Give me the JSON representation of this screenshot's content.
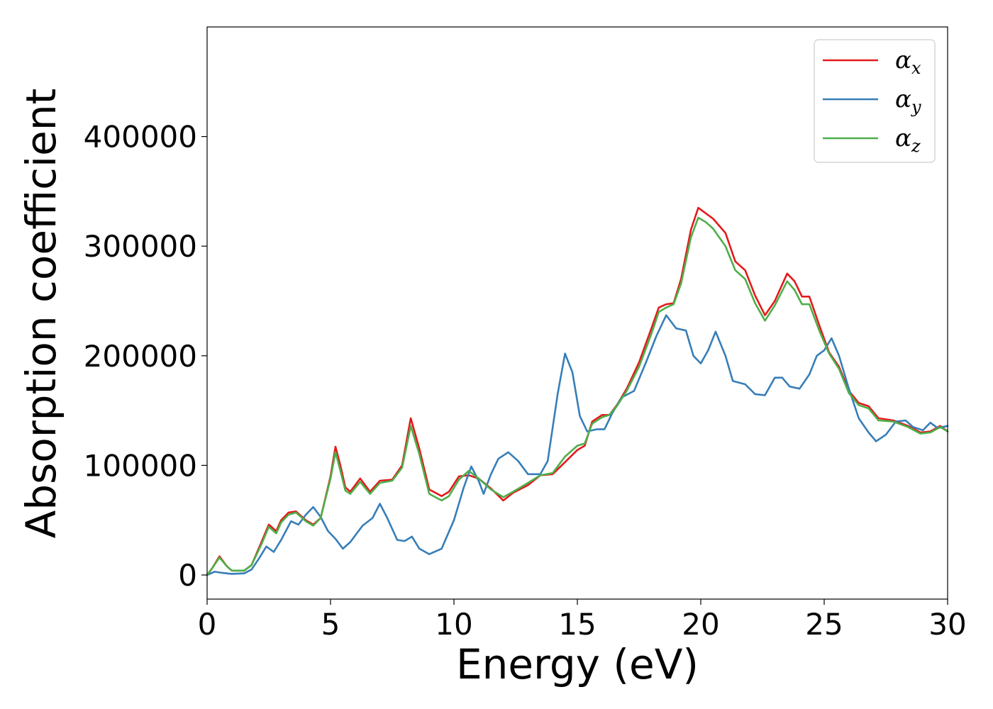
{
  "chart_data": {
    "type": "line",
    "title": "",
    "xlabel": "Energy (eV)",
    "ylabel": "Absorption coefficient",
    "xlim": [
      0,
      30
    ],
    "ylim": [
      -22000,
      500000
    ],
    "xticks": [
      0,
      5,
      10,
      15,
      20,
      25,
      30
    ],
    "xtick_labels": [
      "0",
      "5",
      "10",
      "15",
      "20",
      "25",
      "30"
    ],
    "yticks": [
      0,
      100000,
      200000,
      300000,
      400000
    ],
    "ytick_labels": [
      "0",
      "100000",
      "200000",
      "300000",
      "400000"
    ],
    "grid": false,
    "legend_position": "top-right",
    "series": [
      {
        "name": "α_x",
        "legend_symbol": "α",
        "legend_sub": "x",
        "color": "#e41a1c",
        "points": [
          [
            0,
            0
          ],
          [
            0.2,
            6000
          ],
          [
            0.5,
            17000
          ],
          [
            0.8,
            8000
          ],
          [
            1.0,
            4000
          ],
          [
            1.5,
            4000
          ],
          [
            1.8,
            9000
          ],
          [
            2.2,
            30000
          ],
          [
            2.5,
            46000
          ],
          [
            2.8,
            40000
          ],
          [
            3.0,
            50000
          ],
          [
            3.3,
            57000
          ],
          [
            3.6,
            58000
          ],
          [
            4.0,
            50000
          ],
          [
            4.3,
            46000
          ],
          [
            4.6,
            52000
          ],
          [
            5.0,
            90000
          ],
          [
            5.2,
            117000
          ],
          [
            5.4,
            100000
          ],
          [
            5.6,
            80000
          ],
          [
            5.8,
            76000
          ],
          [
            6.2,
            88000
          ],
          [
            6.6,
            76000
          ],
          [
            7.0,
            86000
          ],
          [
            7.5,
            87000
          ],
          [
            7.9,
            100000
          ],
          [
            8.25,
            143000
          ],
          [
            8.6,
            115000
          ],
          [
            9.0,
            78000
          ],
          [
            9.5,
            72000
          ],
          [
            9.8,
            76000
          ],
          [
            10.2,
            90000
          ],
          [
            10.6,
            91000
          ],
          [
            11.0,
            88000
          ],
          [
            11.5,
            79000
          ],
          [
            12.0,
            68000
          ],
          [
            12.4,
            75000
          ],
          [
            13.0,
            82000
          ],
          [
            13.5,
            91000
          ],
          [
            14.0,
            92000
          ],
          [
            14.5,
            103000
          ],
          [
            15.0,
            114000
          ],
          [
            15.3,
            118000
          ],
          [
            15.6,
            140000
          ],
          [
            16.0,
            146000
          ],
          [
            16.3,
            146000
          ],
          [
            16.6,
            155000
          ],
          [
            17.0,
            170000
          ],
          [
            17.5,
            194000
          ],
          [
            18.0,
            225000
          ],
          [
            18.3,
            244000
          ],
          [
            18.6,
            247000
          ],
          [
            18.9,
            248000
          ],
          [
            19.2,
            270000
          ],
          [
            19.6,
            315000
          ],
          [
            19.9,
            335000
          ],
          [
            20.2,
            330000
          ],
          [
            20.5,
            325000
          ],
          [
            21.0,
            312000
          ],
          [
            21.4,
            286000
          ],
          [
            21.8,
            278000
          ],
          [
            22.2,
            255000
          ],
          [
            22.6,
            237000
          ],
          [
            23.0,
            250000
          ],
          [
            23.5,
            275000
          ],
          [
            23.8,
            268000
          ],
          [
            24.1,
            254000
          ],
          [
            24.4,
            254000
          ],
          [
            24.8,
            228000
          ],
          [
            25.2,
            203000
          ],
          [
            25.6,
            190000
          ],
          [
            26.0,
            168000
          ],
          [
            26.4,
            157000
          ],
          [
            26.8,
            154000
          ],
          [
            27.2,
            143000
          ],
          [
            27.8,
            141000
          ],
          [
            28.4,
            136000
          ],
          [
            28.9,
            130000
          ],
          [
            29.3,
            131000
          ],
          [
            29.7,
            136000
          ],
          [
            30.0,
            131000
          ]
        ]
      },
      {
        "name": "α_y",
        "legend_symbol": "α",
        "legend_sub": "y",
        "color": "#377eb8",
        "points": [
          [
            0,
            0
          ],
          [
            0.3,
            3000
          ],
          [
            0.6,
            2000
          ],
          [
            1.0,
            1000
          ],
          [
            1.5,
            1500
          ],
          [
            1.8,
            5000
          ],
          [
            2.1,
            15000
          ],
          [
            2.4,
            26000
          ],
          [
            2.7,
            21000
          ],
          [
            3.0,
            32000
          ],
          [
            3.4,
            49000
          ],
          [
            3.7,
            46000
          ],
          [
            4.0,
            55000
          ],
          [
            4.3,
            62000
          ],
          [
            4.6,
            53000
          ],
          [
            4.9,
            40000
          ],
          [
            5.2,
            33000
          ],
          [
            5.5,
            24000
          ],
          [
            5.8,
            30000
          ],
          [
            6.3,
            45000
          ],
          [
            6.7,
            52000
          ],
          [
            7.0,
            65000
          ],
          [
            7.3,
            52000
          ],
          [
            7.7,
            32000
          ],
          [
            8.0,
            31000
          ],
          [
            8.3,
            35000
          ],
          [
            8.6,
            24000
          ],
          [
            9.0,
            19000
          ],
          [
            9.5,
            24000
          ],
          [
            10.0,
            50000
          ],
          [
            10.4,
            80000
          ],
          [
            10.7,
            99000
          ],
          [
            11.0,
            86000
          ],
          [
            11.2,
            74000
          ],
          [
            11.5,
            92000
          ],
          [
            11.8,
            106000
          ],
          [
            12.2,
            112000
          ],
          [
            12.6,
            104000
          ],
          [
            13.0,
            92000
          ],
          [
            13.5,
            92000
          ],
          [
            13.8,
            104000
          ],
          [
            14.2,
            165000
          ],
          [
            14.5,
            202000
          ],
          [
            14.8,
            185000
          ],
          [
            15.1,
            145000
          ],
          [
            15.4,
            131000
          ],
          [
            15.8,
            133000
          ],
          [
            16.1,
            133000
          ],
          [
            16.4,
            147000
          ],
          [
            16.8,
            162000
          ],
          [
            17.3,
            168000
          ],
          [
            17.8,
            195000
          ],
          [
            18.2,
            218000
          ],
          [
            18.6,
            237000
          ],
          [
            19.0,
            225000
          ],
          [
            19.4,
            223000
          ],
          [
            19.7,
            200000
          ],
          [
            20.0,
            193000
          ],
          [
            20.3,
            205000
          ],
          [
            20.6,
            222000
          ],
          [
            21.0,
            200000
          ],
          [
            21.3,
            177000
          ],
          [
            21.8,
            174000
          ],
          [
            22.2,
            165000
          ],
          [
            22.6,
            164000
          ],
          [
            23.0,
            180000
          ],
          [
            23.3,
            180000
          ],
          [
            23.6,
            172000
          ],
          [
            24.0,
            170000
          ],
          [
            24.4,
            183000
          ],
          [
            24.7,
            200000
          ],
          [
            25.0,
            205000
          ],
          [
            25.3,
            216000
          ],
          [
            25.6,
            200000
          ],
          [
            26.0,
            170000
          ],
          [
            26.4,
            143000
          ],
          [
            26.8,
            130000
          ],
          [
            27.1,
            122000
          ],
          [
            27.5,
            128000
          ],
          [
            27.9,
            140000
          ],
          [
            28.3,
            141000
          ],
          [
            28.6,
            135000
          ],
          [
            29.0,
            132000
          ],
          [
            29.3,
            139000
          ],
          [
            29.6,
            134000
          ],
          [
            30.0,
            136000
          ]
        ]
      },
      {
        "name": "α_z",
        "legend_symbol": "α",
        "legend_sub": "z",
        "color": "#4daf4a",
        "points": [
          [
            0,
            0
          ],
          [
            0.2,
            6000
          ],
          [
            0.5,
            16000
          ],
          [
            0.8,
            8000
          ],
          [
            1.0,
            4000
          ],
          [
            1.5,
            4000
          ],
          [
            1.8,
            9000
          ],
          [
            2.2,
            28000
          ],
          [
            2.5,
            44000
          ],
          [
            2.8,
            38000
          ],
          [
            3.0,
            48000
          ],
          [
            3.3,
            55000
          ],
          [
            3.6,
            57000
          ],
          [
            4.0,
            49000
          ],
          [
            4.3,
            45000
          ],
          [
            4.6,
            52000
          ],
          [
            5.0,
            88000
          ],
          [
            5.2,
            112000
          ],
          [
            5.4,
            95000
          ],
          [
            5.6,
            77000
          ],
          [
            5.8,
            74000
          ],
          [
            6.2,
            85000
          ],
          [
            6.6,
            74000
          ],
          [
            7.0,
            84000
          ],
          [
            7.5,
            86000
          ],
          [
            7.9,
            98000
          ],
          [
            8.25,
            136000
          ],
          [
            8.6,
            110000
          ],
          [
            9.0,
            74000
          ],
          [
            9.5,
            68000
          ],
          [
            9.8,
            72000
          ],
          [
            10.2,
            87000
          ],
          [
            10.6,
            95000
          ],
          [
            11.0,
            88000
          ],
          [
            11.5,
            78000
          ],
          [
            12.0,
            71000
          ],
          [
            12.4,
            76000
          ],
          [
            13.0,
            84000
          ],
          [
            13.5,
            91000
          ],
          [
            14.0,
            93000
          ],
          [
            14.5,
            108000
          ],
          [
            15.0,
            118000
          ],
          [
            15.3,
            120000
          ],
          [
            15.6,
            138000
          ],
          [
            16.0,
            144000
          ],
          [
            16.3,
            146000
          ],
          [
            16.6,
            154000
          ],
          [
            17.0,
            168000
          ],
          [
            17.5,
            190000
          ],
          [
            18.0,
            220000
          ],
          [
            18.3,
            240000
          ],
          [
            18.6,
            244000
          ],
          [
            18.9,
            247000
          ],
          [
            19.2,
            266000
          ],
          [
            19.6,
            308000
          ],
          [
            19.9,
            326000
          ],
          [
            20.2,
            322000
          ],
          [
            20.5,
            316000
          ],
          [
            21.0,
            300000
          ],
          [
            21.4,
            278000
          ],
          [
            21.8,
            270000
          ],
          [
            22.2,
            248000
          ],
          [
            22.6,
            232000
          ],
          [
            23.0,
            246000
          ],
          [
            23.5,
            268000
          ],
          [
            23.8,
            260000
          ],
          [
            24.1,
            247000
          ],
          [
            24.4,
            247000
          ],
          [
            24.8,
            223000
          ],
          [
            25.2,
            202000
          ],
          [
            25.6,
            188000
          ],
          [
            26.0,
            166000
          ],
          [
            26.4,
            155000
          ],
          [
            26.8,
            152000
          ],
          [
            27.2,
            141000
          ],
          [
            27.8,
            140000
          ],
          [
            28.4,
            135000
          ],
          [
            28.9,
            129000
          ],
          [
            29.3,
            130000
          ],
          [
            29.7,
            135000
          ],
          [
            30.0,
            131000
          ]
        ]
      }
    ]
  }
}
